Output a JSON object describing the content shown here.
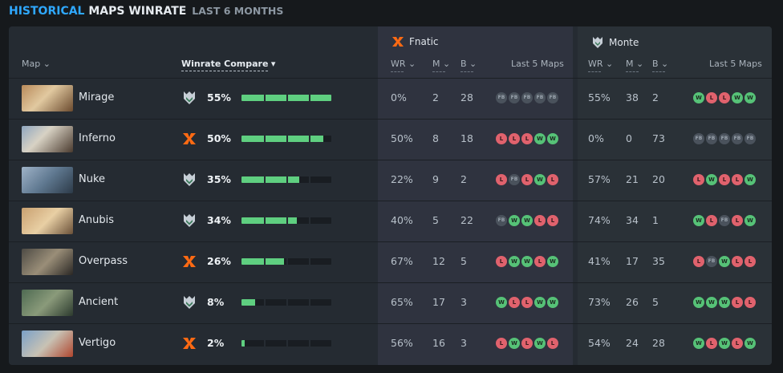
{
  "header": {
    "title_a": "HISTORICAL",
    "title_b": "MAPS WINRATE",
    "subtitle": "LAST 6 MONTHS"
  },
  "columns": {
    "map": "Map",
    "compare": "Winrate Compare",
    "wr": "WR",
    "m": "M",
    "b": "B",
    "last5": "Last 5 Maps"
  },
  "teams": {
    "fnatic": "Fnatic",
    "monte": "Monte"
  },
  "colors": {
    "accent": "#2fa8ff",
    "win": "#56c277",
    "loss": "#e0626d",
    "bar": "#5fcf80"
  },
  "rows": [
    {
      "map": "Mirage",
      "leader": "monte",
      "pct": "55%",
      "bar": 1.0,
      "f_wr": "0%",
      "f_m": "2",
      "f_b": "28",
      "f_last5": [
        "FB",
        "FB",
        "FB",
        "FB",
        "FB"
      ],
      "m_wr": "55%",
      "m_m": "38",
      "m_b": "2",
      "m_last5": [
        "W",
        "L",
        "L",
        "W",
        "W"
      ]
    },
    {
      "map": "Inferno",
      "leader": "fnatic",
      "pct": "50%",
      "bar": 0.91,
      "f_wr": "50%",
      "f_m": "8",
      "f_b": "18",
      "f_last5": [
        "L",
        "L",
        "L",
        "W",
        "W"
      ],
      "m_wr": "0%",
      "m_m": "0",
      "m_b": "73",
      "m_last5": [
        "FB",
        "FB",
        "FB",
        "FB",
        "FB"
      ]
    },
    {
      "map": "Nuke",
      "leader": "monte",
      "pct": "35%",
      "bar": 0.64,
      "f_wr": "22%",
      "f_m": "9",
      "f_b": "2",
      "f_last5": [
        "L",
        "FB",
        "L",
        "W",
        "L"
      ],
      "m_wr": "57%",
      "m_m": "21",
      "m_b": "20",
      "m_last5": [
        "L",
        "W",
        "L",
        "L",
        "W"
      ]
    },
    {
      "map": "Anubis",
      "leader": "monte",
      "pct": "34%",
      "bar": 0.62,
      "f_wr": "40%",
      "f_m": "5",
      "f_b": "22",
      "f_last5": [
        "FB",
        "W",
        "W",
        "L",
        "L"
      ],
      "m_wr": "74%",
      "m_m": "34",
      "m_b": "1",
      "m_last5": [
        "W",
        "L",
        "FB",
        "L",
        "W"
      ]
    },
    {
      "map": "Overpass",
      "leader": "fnatic",
      "pct": "26%",
      "bar": 0.47,
      "f_wr": "67%",
      "f_m": "12",
      "f_b": "5",
      "f_last5": [
        "L",
        "W",
        "W",
        "L",
        "W"
      ],
      "m_wr": "41%",
      "m_m": "17",
      "m_b": "35",
      "m_last5": [
        "L",
        "FB",
        "W",
        "L",
        "L"
      ]
    },
    {
      "map": "Ancient",
      "leader": "monte",
      "pct": "8%",
      "bar": 0.15,
      "f_wr": "65%",
      "f_m": "17",
      "f_b": "3",
      "f_last5": [
        "W",
        "L",
        "L",
        "W",
        "W"
      ],
      "m_wr": "73%",
      "m_m": "26",
      "m_b": "5",
      "m_last5": [
        "W",
        "W",
        "W",
        "L",
        "L"
      ]
    },
    {
      "map": "Vertigo",
      "leader": "fnatic",
      "pct": "2%",
      "bar": 0.04,
      "f_wr": "56%",
      "f_m": "16",
      "f_b": "3",
      "f_last5": [
        "L",
        "W",
        "L",
        "W",
        "L"
      ],
      "m_wr": "54%",
      "m_m": "24",
      "m_b": "28",
      "m_last5": [
        "W",
        "L",
        "W",
        "L",
        "W"
      ]
    }
  ]
}
